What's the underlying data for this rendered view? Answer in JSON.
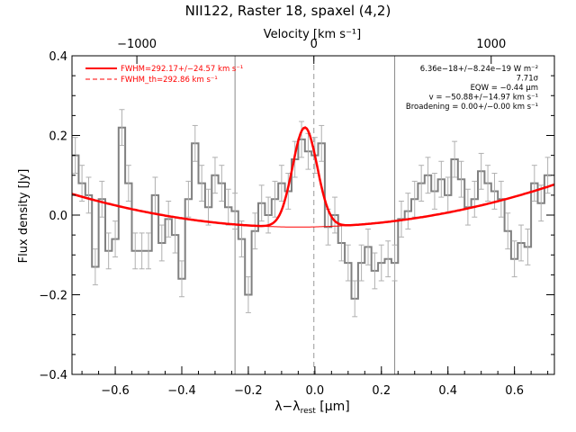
{
  "chart_data": {
    "type": "line",
    "title": "NII122, Raster 18, spaxel (4,2)",
    "xlabel": "λ−λ",
    "xlabel_sub": "rest",
    "xlabel_unit": "[μm]",
    "ylabel": "Flux density [Jy]",
    "top_axis_label": "Velocity [km s⁻¹]",
    "xlim": [
      -0.73,
      0.72
    ],
    "ylim": [
      -0.4,
      0.4
    ],
    "x_ticks": [
      "−0.6",
      "−0.4",
      "−0.2",
      "0.0",
      "0.2",
      "0.4",
      "0.6"
    ],
    "x_tick_values": [
      -0.6,
      -0.4,
      -0.2,
      0.0,
      0.2,
      0.4,
      0.6
    ],
    "y_ticks": [
      "0.4",
      "0.2",
      "0.0",
      "−0.2",
      "−0.4"
    ],
    "y_tick_values": [
      0.4,
      0.2,
      0.0,
      -0.2,
      -0.4
    ],
    "top_ticks": [
      "−1000",
      "0",
      "1000"
    ],
    "top_tick_values": [
      -0.535,
      -0.003,
      0.53
    ],
    "vlines_solid": [
      -0.24,
      0.24
    ],
    "vline_dashed": -0.003,
    "legend": [
      {
        "label": "FWHM=292.17+/−24.57 km s⁻¹",
        "style": "solid"
      },
      {
        "label": "FWHM_th=292.86 km s⁻¹",
        "style": "dashed"
      }
    ],
    "annotations": [
      "6.36e−18+/−8.24e−19 W m⁻²",
      "7.71σ",
      "EQW = −0.44 μm",
      "v = −50.88+/−14.97 km s⁻¹",
      "Broadening = 0.00+/−0.00 km s⁻¹"
    ],
    "series": [
      {
        "style": "histogram",
        "color": "#808080",
        "x": [
          -0.72,
          -0.7,
          -0.68,
          -0.66,
          -0.64,
          -0.62,
          -0.6,
          -0.58,
          -0.56,
          -0.54,
          -0.52,
          -0.5,
          -0.48,
          -0.46,
          -0.44,
          -0.42,
          -0.4,
          -0.38,
          -0.36,
          -0.34,
          -0.32,
          -0.3,
          -0.28,
          -0.26,
          -0.24,
          -0.22,
          -0.2,
          -0.18,
          -0.16,
          -0.14,
          -0.12,
          -0.1,
          -0.08,
          -0.06,
          -0.04,
          -0.02,
          0.0,
          0.02,
          0.04,
          0.06,
          0.08,
          0.1,
          0.12,
          0.14,
          0.16,
          0.18,
          0.2,
          0.22,
          0.24,
          0.26,
          0.28,
          0.3,
          0.32,
          0.34,
          0.36,
          0.38,
          0.4,
          0.42,
          0.44,
          0.46,
          0.48,
          0.5,
          0.52,
          0.54,
          0.56,
          0.58,
          0.6,
          0.62,
          0.64,
          0.66,
          0.68,
          0.7
        ],
        "y": [
          0.15,
          0.08,
          0.05,
          -0.13,
          0.04,
          -0.09,
          -0.06,
          0.22,
          0.08,
          -0.09,
          -0.09,
          -0.09,
          0.05,
          -0.07,
          -0.01,
          -0.05,
          -0.16,
          0.04,
          0.18,
          0.08,
          0.02,
          0.1,
          0.08,
          0.02,
          0.01,
          -0.06,
          -0.2,
          -0.04,
          0.03,
          0.0,
          0.04,
          0.08,
          0.06,
          0.14,
          0.19,
          0.16,
          0.15,
          0.18,
          -0.03,
          0.0,
          -0.07,
          -0.12,
          -0.21,
          -0.12,
          -0.08,
          -0.14,
          -0.12,
          -0.11,
          -0.12,
          -0.01,
          0.01,
          0.04,
          0.08,
          0.1,
          0.06,
          0.09,
          0.05,
          0.14,
          0.09,
          0.02,
          0.04,
          0.11,
          0.08,
          0.06,
          0.04,
          -0.04,
          -0.11,
          -0.07,
          -0.08,
          0.08,
          0.03,
          0.1
        ],
        "errors": [
          0.045,
          0.045,
          0.045,
          0.045,
          0.045,
          0.045,
          0.045,
          0.045,
          0.045,
          0.045,
          0.045,
          0.045,
          0.045,
          0.045,
          0.045,
          0.045,
          0.045,
          0.045,
          0.045,
          0.045,
          0.045,
          0.045,
          0.045,
          0.045,
          0.045,
          0.045,
          0.045,
          0.045,
          0.045,
          0.045,
          0.045,
          0.045,
          0.045,
          0.045,
          0.045,
          0.045,
          0.045,
          0.045,
          0.045,
          0.045,
          0.045,
          0.045,
          0.045,
          0.045,
          0.045,
          0.045,
          0.045,
          0.045,
          0.045,
          0.045,
          0.045,
          0.045,
          0.045,
          0.045,
          0.045,
          0.045,
          0.045,
          0.045,
          0.045,
          0.045,
          0.045,
          0.045,
          0.045,
          0.045,
          0.045,
          0.045,
          0.045,
          0.045,
          0.045,
          0.045,
          0.045,
          0.045
        ]
      },
      {
        "style": "fit",
        "color": "#ff0000",
        "continuum": {
          "center": -0.05,
          "min": -0.03,
          "curvature": 0.18
        },
        "gaussian": {
          "center": -0.03,
          "amplitude": 0.25,
          "sigma": 0.037
        }
      }
    ]
  }
}
